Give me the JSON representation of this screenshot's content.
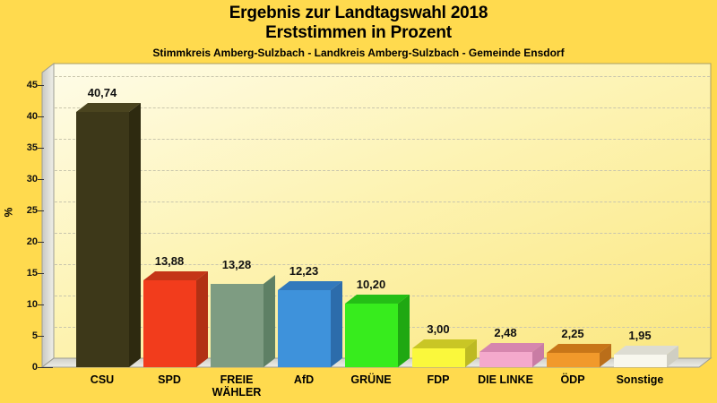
{
  "header": {
    "title_line1": "Ergebnis zur Landtagswahl 2018",
    "title_line2": "Erststimmen in Prozent",
    "subtitle": "Stimmkreis Amberg-Sulzbach - Landkreis Amberg-Sulzbach - Gemeinde Ensdorf"
  },
  "chart_data": {
    "type": "bar",
    "title": "Ergebnis zur Landtagswahl 2018",
    "subtitle": "Erststimmen in Prozent",
    "region": "Stimmkreis Amberg-Sulzbach - Landkreis Amberg-Sulzbach - Gemeinde Ensdorf",
    "ylabel": "%",
    "ylim": [
      0,
      45
    ],
    "ytick_step": 5,
    "yticks": [
      0,
      5,
      10,
      15,
      20,
      25,
      30,
      35,
      40,
      45
    ],
    "grid": "horizontal-dashed",
    "legend": "none",
    "style": "3d-columns",
    "categories": [
      "CSU",
      "SPD",
      "FREIE WÄHLER",
      "AfD",
      "GRÜNE",
      "FDP",
      "DIE LINKE",
      "ÖDP",
      "Sonstige"
    ],
    "values": [
      40.74,
      13.88,
      13.28,
      12.23,
      10.2,
      3.0,
      2.48,
      2.25,
      1.95
    ],
    "bars": [
      {
        "party": "CSU",
        "value": 40.74,
        "label": "40,74",
        "color": "#3D3819",
        "color_top": "#4A441F",
        "color_side": "#2E2A10"
      },
      {
        "party": "SPD",
        "value": 13.88,
        "label": "13,88",
        "color": "#F23C1C",
        "color_top": "#C43517",
        "color_side": "#B23014"
      },
      {
        "party": "FREIE WÄHLER",
        "value": 13.28,
        "label": "13,28",
        "color": "#7E9C82",
        "color_top": "#71907七",
        "color_side": "#5E8065"
      },
      {
        "party": "AfD",
        "value": 12.23,
        "label": "12,23",
        "color": "#3E92DB",
        "color_top": "#3279BC",
        "color_side": "#2C6CAB"
      },
      {
        "party": "GRÜNE",
        "value": 10.2,
        "label": "10,20",
        "color": "#37EC1D",
        "color_top": "#24BE16",
        "color_side": "#1FA812"
      },
      {
        "party": "FDP",
        "value": 3.0,
        "label": "3,00",
        "color": "#FAF83C",
        "color_top": "#C9C625",
        "color_side": "#BDBA22"
      },
      {
        "party": "DIE LINKE",
        "value": 2.48,
        "label": "2,48",
        "color": "#F4A9CC",
        "color_top": "#D686AE",
        "color_side": "#C97CA4"
      },
      {
        "party": "ÖDP",
        "value": 2.25,
        "label": "2,25",
        "color": "#F1992B",
        "color_top": "#C87618",
        "color_side": "#BA6E1A"
      },
      {
        "party": "Sonstige",
        "value": 1.95,
        "label": "1,95",
        "color": "#F8F7EE",
        "color_top": "#DDDCD2",
        "color_side": "#CFCEC2"
      }
    ]
  },
  "colors": {
    "background": "#FFDA4E",
    "plot_gradient_top": "#FEFBE2",
    "plot_gradient_bottom": "#FBE884",
    "grid": "#C9C6AD",
    "wall": "#D5D5D0",
    "text": "#000000"
  }
}
